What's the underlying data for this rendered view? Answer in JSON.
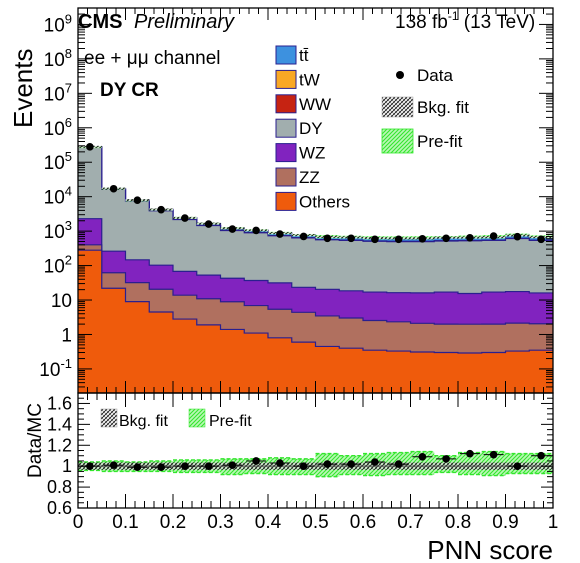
{
  "header": {
    "cms": "CMS",
    "preliminary": "Preliminary",
    "lumi": "138 fb",
    "lumi_sup": "-1",
    "energy": " (13 TeV)"
  },
  "labels": {
    "channel": "ee + μμ channel",
    "region": "DY CR"
  },
  "colors": {
    "ttbar": "#3d91df",
    "tW": "#f9a825",
    "WW": "#c62312",
    "DY": "#a1aeae",
    "WZ": "#8123bf",
    "ZZ": "#b0705f",
    "Others": "#ef5b0c",
    "prefit": "#33e62c"
  },
  "chart_data": [
    {
      "type": "area",
      "title": "",
      "xlabel": "",
      "ylabel": "Events",
      "yscale": "log",
      "xlim": [
        0,
        1
      ],
      "ylim": [
        0.02,
        3000000000
      ],
      "y_tick_labels": [
        "10^-1",
        "1",
        "10",
        "10^2",
        "10^3",
        "10^4",
        "10^5",
        "10^6",
        "10^7",
        "10^8",
        "10^9"
      ],
      "bin_edges": [
        0,
        0.05,
        0.1,
        0.15,
        0.2,
        0.25,
        0.3,
        0.35,
        0.4,
        0.45,
        0.5,
        0.55,
        0.6,
        0.65,
        0.7,
        0.75,
        0.8,
        0.85,
        0.9,
        0.95,
        1.0
      ],
      "stack_order": [
        "Others",
        "ZZ",
        "WZ",
        "DY",
        "WW",
        "tW",
        "ttbar"
      ],
      "series": [
        {
          "name": "Others",
          "key": "Others",
          "values": [
            280,
            22,
            9,
            4.5,
            2.8,
            1.9,
            1.4,
            1.1,
            0.8,
            0.6,
            0.45,
            0.4,
            0.35,
            0.33,
            0.31,
            0.3,
            0.29,
            0.3,
            0.33,
            0.35
          ]
        },
        {
          "name": "ZZ",
          "key": "ZZ",
          "values": [
            120,
            40,
            23,
            16,
            11,
            9,
            7.5,
            5.8,
            4.6,
            3.8,
            3.0,
            2.6,
            2.2,
            2.0,
            1.8,
            1.7,
            1.7,
            1.7,
            1.8,
            1.7
          ]
        },
        {
          "name": "WZ",
          "key": "WZ",
          "values": [
            1900,
            200,
            115,
            82,
            54,
            42,
            34,
            30,
            26,
            19,
            17,
            15.5,
            14.5,
            14,
            14,
            15,
            13.5,
            15,
            15.5,
            14
          ]
        },
        {
          "name": "DY",
          "key": "DY",
          "values": [
            270000,
            16000,
            7300,
            3800,
            2100,
            1400,
            1000,
            860,
            700,
            610,
            540,
            520,
            490,
            480,
            480,
            500,
            510,
            520,
            590,
            520
          ]
        },
        {
          "name": "WW",
          "key": "WW",
          "values": [
            500,
            40,
            20,
            12,
            8,
            6,
            5,
            4,
            4,
            3,
            3,
            3,
            3,
            3,
            3,
            3,
            3,
            3,
            3,
            3
          ]
        },
        {
          "name": "tW",
          "key": "tW",
          "values": [
            900,
            80,
            40,
            25,
            16,
            11,
            9,
            8,
            7,
            6,
            6,
            6,
            6,
            6,
            6,
            6,
            6,
            6,
            6,
            6
          ]
        },
        {
          "name": "tt̄",
          "key": "ttbar",
          "values": [
            9000,
            900,
            500,
            350,
            250,
            200,
            170,
            150,
            140,
            130,
            120,
            120,
            120,
            120,
            120,
            125,
            125,
            130,
            140,
            130
          ]
        }
      ],
      "data": {
        "name": "Data",
        "x": [
          0.025,
          0.075,
          0.125,
          0.175,
          0.225,
          0.275,
          0.325,
          0.375,
          0.425,
          0.475,
          0.525,
          0.575,
          0.625,
          0.675,
          0.725,
          0.775,
          0.825,
          0.875,
          0.925,
          0.975
        ],
        "y": [
          280000,
          17000,
          7900,
          4200,
          2400,
          1600,
          1150,
          1050,
          820,
          700,
          620,
          620,
          580,
          580,
          600,
          620,
          640,
          720,
          690,
          580
        ]
      },
      "legend": [
        {
          "label": "tt̄",
          "key": "ttbar"
        },
        {
          "label": "tW",
          "key": "tW"
        },
        {
          "label": "WW",
          "key": "WW"
        },
        {
          "label": "DY",
          "key": "DY"
        },
        {
          "label": "WZ",
          "key": "WZ"
        },
        {
          "label": "ZZ",
          "key": "ZZ"
        },
        {
          "label": "Others",
          "key": "Others"
        },
        {
          "label": "Data",
          "key": "data"
        },
        {
          "label": "Bkg. fit",
          "key": "bkgfit"
        },
        {
          "label": "Pre-fit",
          "key": "prefit"
        }
      ],
      "legend_position": "top"
    },
    {
      "type": "scatter",
      "title": "",
      "xlabel": "PNN score",
      "ylabel": "Data/MC",
      "xlim": [
        0,
        1
      ],
      "ylim": [
        0.6,
        1.7
      ],
      "x_tick_labels": [
        "0",
        "0.1",
        "0.2",
        "0.3",
        "0.4",
        "0.5",
        "0.6",
        "0.7",
        "0.8",
        "0.9",
        "1"
      ],
      "y_tick_labels": [
        "0.6",
        "0.8",
        "1",
        "1.2",
        "1.4",
        "1.6"
      ],
      "x": [
        0.025,
        0.075,
        0.125,
        0.175,
        0.225,
        0.275,
        0.325,
        0.375,
        0.425,
        0.475,
        0.525,
        0.575,
        0.625,
        0.675,
        0.725,
        0.775,
        0.825,
        0.875,
        0.925,
        0.975
      ],
      "ratio": [
        1.0,
        1.01,
        0.99,
        0.99,
        1.0,
        1.0,
        1.01,
        1.05,
        1.03,
        1.0,
        1.02,
        1.02,
        1.04,
        1.02,
        1.09,
        1.07,
        1.12,
        1.11,
        1.0,
        1.1
      ],
      "prefit_band": [
        [
          0.96,
          1.04
        ],
        [
          0.95,
          1.05
        ],
        [
          0.95,
          1.04
        ],
        [
          0.95,
          1.05
        ],
        [
          0.94,
          1.06
        ],
        [
          0.94,
          1.06
        ],
        [
          0.92,
          1.07
        ],
        [
          0.93,
          1.07
        ],
        [
          0.92,
          1.08
        ],
        [
          0.92,
          1.07
        ],
        [
          0.9,
          1.12
        ],
        [
          0.92,
          1.1
        ],
        [
          0.91,
          1.12
        ],
        [
          0.92,
          1.13
        ],
        [
          0.92,
          1.14
        ],
        [
          0.94,
          1.1
        ],
        [
          0.92,
          1.13
        ],
        [
          0.91,
          1.14
        ],
        [
          0.93,
          1.12
        ],
        [
          0.93,
          1.12
        ]
      ],
      "legend": [
        {
          "label": "Bkg. fit",
          "key": "bkgfit"
        },
        {
          "label": "Pre-fit",
          "key": "prefit"
        }
      ],
      "legend_position": "top-left"
    }
  ]
}
